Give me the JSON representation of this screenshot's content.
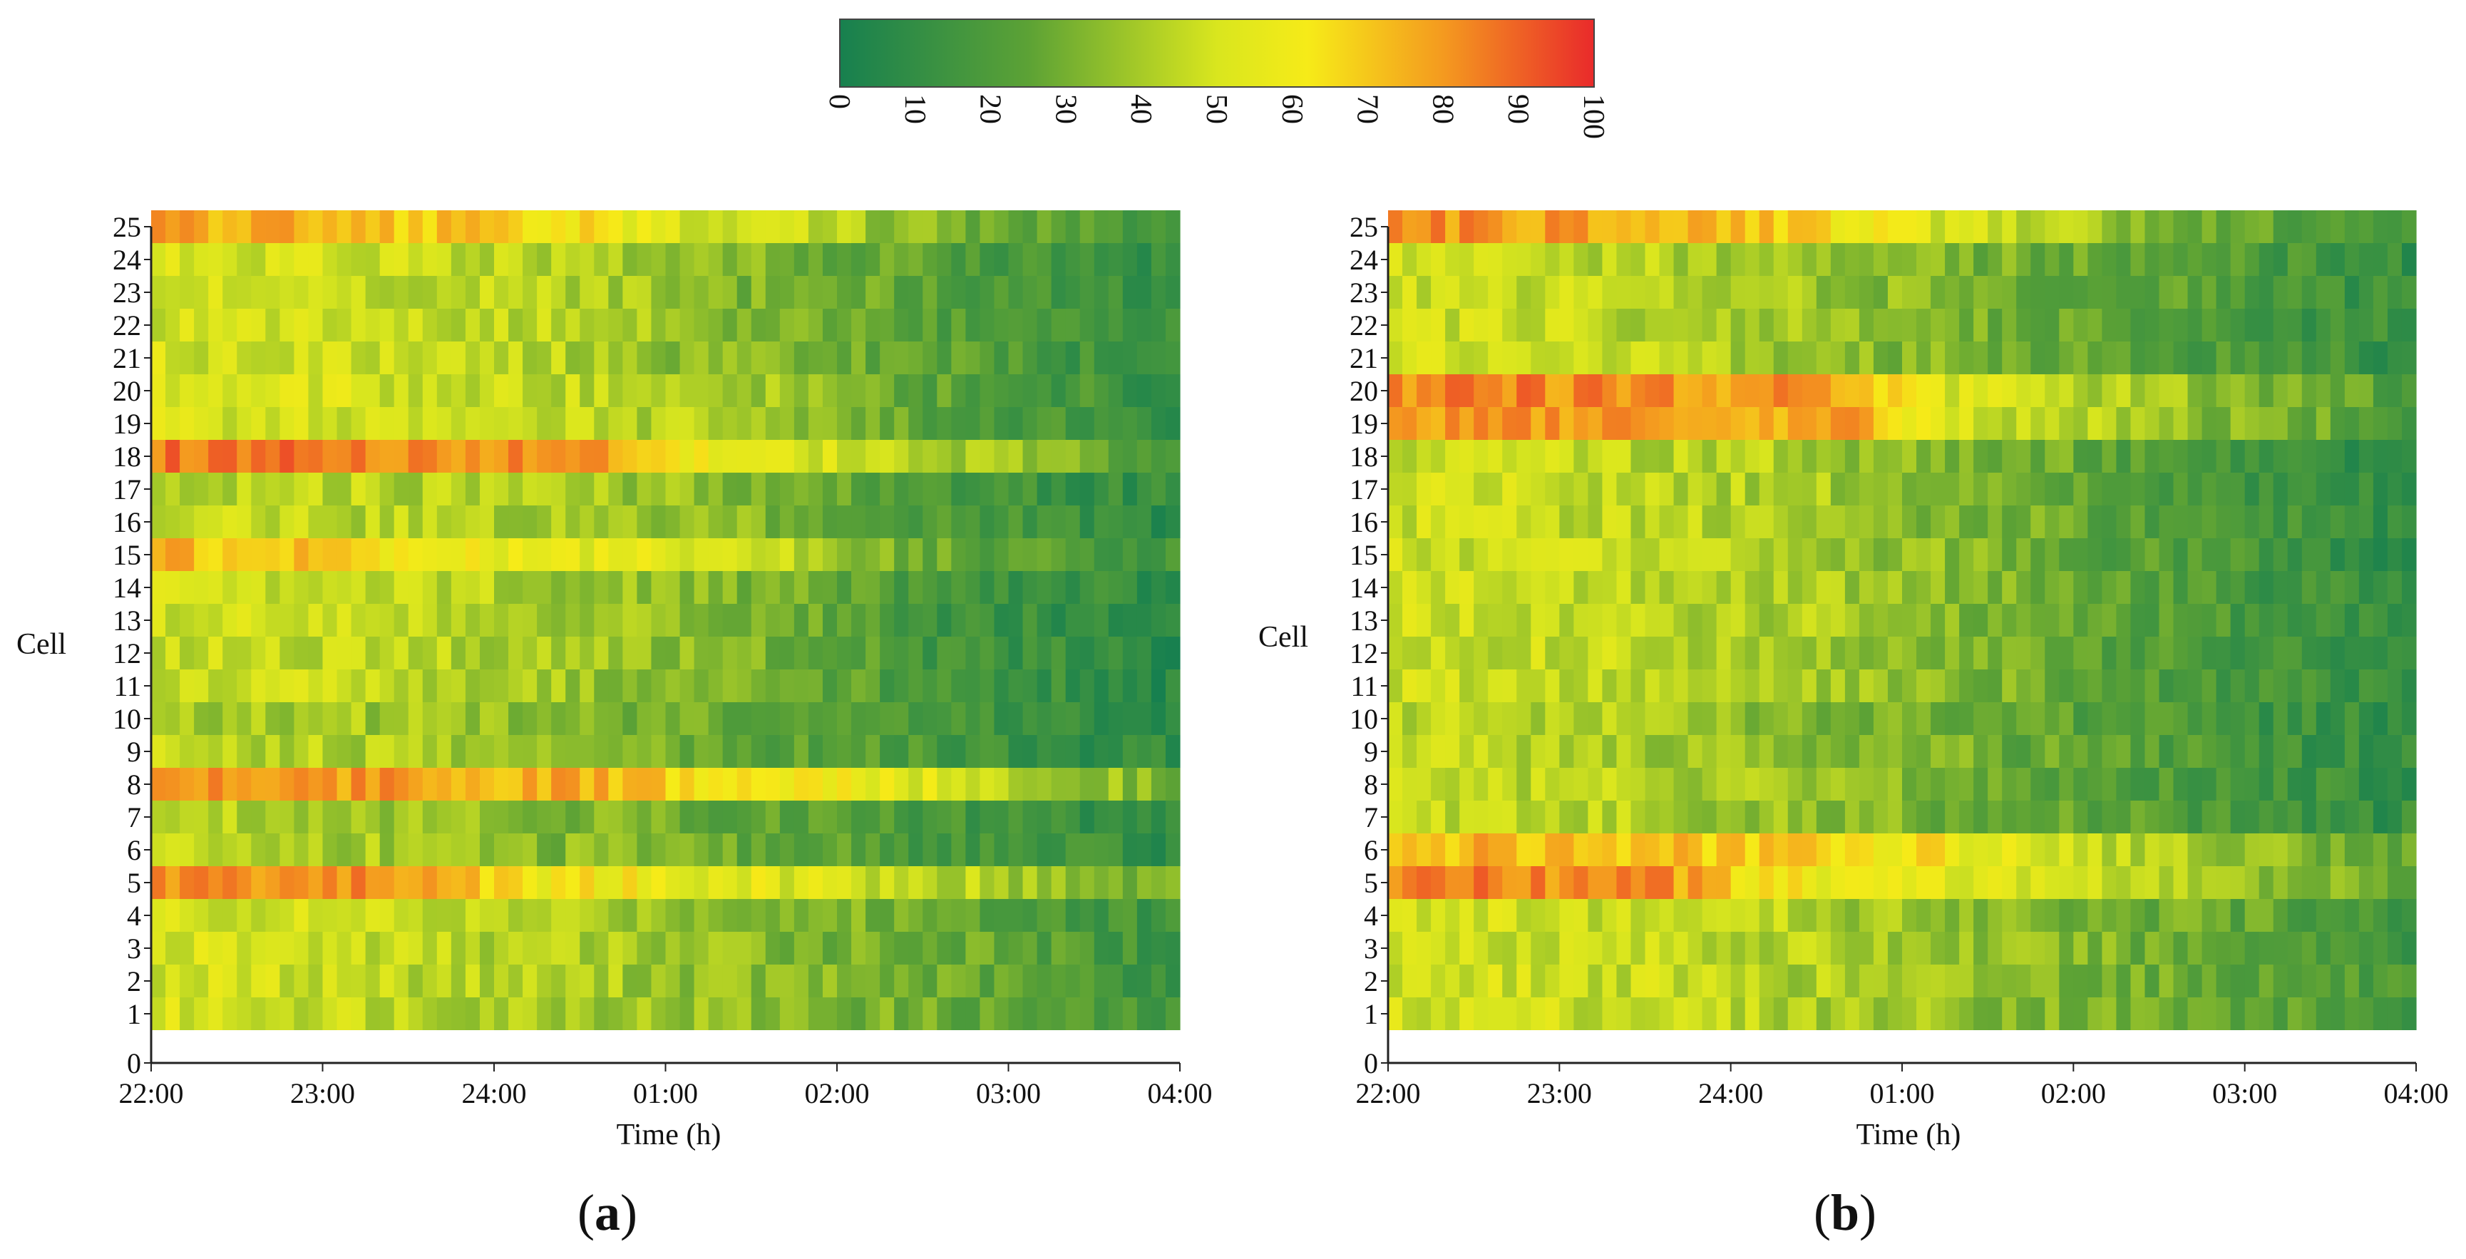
{
  "figure": {
    "colorbar": {
      "ticks": [
        "0",
        "10",
        "20",
        "30",
        "40",
        "50",
        "60",
        "70",
        "80",
        "90",
        "100"
      ],
      "colors": {
        "low": "#17804f",
        "mid_low": "#5ca235",
        "mid": "#d9e61e",
        "mid_high": "#f6eb18",
        "high_orange": "#f49a1f",
        "max": "#e92a2b"
      }
    }
  },
  "chart_data": [
    {
      "type": "heatmap",
      "panel_label": "a",
      "xlabel": "Time (h)",
      "ylabel": "Cell",
      "x_ticks": [
        "22:00",
        "23:00",
        "24:00",
        "01:00",
        "02:00",
        "03:00",
        "04:00"
      ],
      "y_ticks": [
        "0",
        "1",
        "2",
        "3",
        "4",
        "5",
        "6",
        "7",
        "8",
        "9",
        "10",
        "11",
        "12",
        "13",
        "14",
        "15",
        "16",
        "17",
        "18",
        "19",
        "20",
        "21",
        "22",
        "23",
        "24",
        "25"
      ],
      "x_range_hours": [
        0,
        6
      ],
      "y_range": [
        0,
        25
      ],
      "value_range": [
        0,
        100
      ],
      "time_columns": 72,
      "cells": [
        {
          "cell": 1,
          "levels": [
            50,
            49,
            47,
            44,
            42,
            40,
            36,
            33,
            30,
            25,
            20,
            14
          ]
        },
        {
          "cell": 2,
          "levels": [
            50,
            49,
            47,
            44,
            42,
            40,
            36,
            33,
            30,
            25,
            20,
            14
          ]
        },
        {
          "cell": 3,
          "levels": [
            50,
            49,
            47,
            44,
            42,
            40,
            36,
            33,
            30,
            25,
            20,
            14
          ]
        },
        {
          "cell": 4,
          "levels": [
            50,
            49,
            47,
            44,
            42,
            40,
            36,
            33,
            30,
            25,
            20,
            14
          ]
        },
        {
          "cell": 5,
          "levels": [
            82,
            82,
            81,
            79,
            62,
            60,
            56,
            52,
            48,
            42,
            35,
            27
          ]
        },
        {
          "cell": 6,
          "levels": [
            44,
            43,
            41,
            38,
            35,
            31,
            27,
            24,
            20,
            16,
            13,
            10
          ]
        },
        {
          "cell": 7,
          "levels": [
            44,
            43,
            41,
            38,
            35,
            31,
            27,
            24,
            20,
            16,
            13,
            10
          ]
        },
        {
          "cell": 8,
          "levels": [
            82,
            81,
            80,
            78,
            75,
            73,
            62,
            59,
            56,
            46,
            40,
            32
          ]
        },
        {
          "cell": 9,
          "levels": [
            45,
            44,
            42,
            40,
            36,
            33,
            28,
            24,
            20,
            16,
            12,
            9
          ]
        },
        {
          "cell": 10,
          "levels": [
            42,
            41,
            39,
            37,
            34,
            31,
            26,
            23,
            19,
            15,
            12,
            9
          ]
        },
        {
          "cell": 11,
          "levels": [
            48,
            47,
            46,
            44,
            42,
            36,
            32,
            29,
            18,
            14,
            11,
            8
          ]
        },
        {
          "cell": 12,
          "levels": [
            48,
            47,
            46,
            44,
            42,
            36,
            32,
            29,
            18,
            14,
            11,
            8
          ]
        },
        {
          "cell": 13,
          "levels": [
            48,
            47,
            46,
            44,
            42,
            36,
            32,
            29,
            18,
            14,
            11,
            8
          ]
        },
        {
          "cell": 14,
          "levels": [
            48,
            47,
            46,
            44,
            42,
            36,
            32,
            29,
            18,
            14,
            11,
            8
          ]
        },
        {
          "cell": 15,
          "levels": [
            72,
            70,
            68,
            60,
            56,
            53,
            50,
            46,
            30,
            25,
            20,
            14
          ]
        },
        {
          "cell": 16,
          "levels": [
            46,
            45,
            44,
            42,
            40,
            37,
            34,
            31,
            22,
            18,
            14,
            10
          ]
        },
        {
          "cell": 17,
          "levels": [
            46,
            45,
            44,
            42,
            40,
            37,
            34,
            31,
            22,
            18,
            14,
            10
          ]
        },
        {
          "cell": 18,
          "levels": [
            88,
            86,
            85,
            83,
            82,
            80,
            56,
            52,
            46,
            38,
            30,
            24
          ]
        },
        {
          "cell": 19,
          "levels": [
            52,
            51,
            50,
            48,
            46,
            44,
            40,
            36,
            26,
            21,
            17,
            13
          ]
        },
        {
          "cell": 20,
          "levels": [
            52,
            51,
            50,
            48,
            46,
            44,
            40,
            36,
            26,
            21,
            17,
            13
          ]
        },
        {
          "cell": 21,
          "levels": [
            50,
            49,
            48,
            46,
            44,
            40,
            33,
            30,
            25,
            20,
            16,
            12
          ]
        },
        {
          "cell": 22,
          "levels": [
            50,
            49,
            48,
            46,
            44,
            40,
            33,
            30,
            25,
            20,
            16,
            12
          ]
        },
        {
          "cell": 23,
          "levels": [
            50,
            49,
            48,
            46,
            44,
            40,
            33,
            30,
            25,
            20,
            16,
            12
          ]
        },
        {
          "cell": 24,
          "levels": [
            50,
            49,
            48,
            46,
            44,
            40,
            33,
            30,
            25,
            20,
            16,
            12
          ]
        },
        {
          "cell": 25,
          "levels": [
            76,
            75,
            73,
            70,
            66,
            60,
            50,
            45,
            38,
            30,
            24,
            18
          ]
        }
      ]
    },
    {
      "type": "heatmap",
      "panel_label": "b",
      "xlabel": "Time (h)",
      "ylabel": "Cell",
      "x_ticks": [
        "22:00",
        "23:00",
        "24:00",
        "01:00",
        "02:00",
        "03:00",
        "04:00"
      ],
      "y_ticks": [
        "0",
        "1",
        "2",
        "3",
        "4",
        "5",
        "6",
        "7",
        "8",
        "9",
        "10",
        "11",
        "12",
        "13",
        "14",
        "15",
        "16",
        "17",
        "18",
        "19",
        "20",
        "21",
        "22",
        "23",
        "24",
        "25"
      ],
      "x_range_hours": [
        0,
        6
      ],
      "y_range": [
        0,
        25
      ],
      "value_range": [
        0,
        100
      ],
      "time_columns": 72,
      "cells": [
        {
          "cell": 1,
          "levels": [
            50,
            49,
            48,
            46,
            43,
            40,
            37,
            34,
            30,
            26,
            22,
            17
          ]
        },
        {
          "cell": 2,
          "levels": [
            50,
            49,
            48,
            46,
            43,
            40,
            37,
            34,
            30,
            26,
            22,
            17
          ]
        },
        {
          "cell": 3,
          "levels": [
            50,
            49,
            48,
            46,
            43,
            40,
            37,
            34,
            30,
            26,
            22,
            17
          ]
        },
        {
          "cell": 4,
          "levels": [
            50,
            49,
            48,
            46,
            43,
            40,
            37,
            34,
            30,
            26,
            22,
            17
          ]
        },
        {
          "cell": 5,
          "levels": [
            84,
            83,
            82,
            80,
            60,
            58,
            54,
            50,
            44,
            38,
            32,
            26
          ]
        },
        {
          "cell": 6,
          "levels": [
            74,
            73,
            72,
            70,
            68,
            66,
            60,
            52,
            44,
            38,
            32,
            26
          ]
        },
        {
          "cell": 7,
          "levels": [
            46,
            45,
            43,
            40,
            37,
            34,
            30,
            26,
            22,
            18,
            14,
            11
          ]
        },
        {
          "cell": 8,
          "levels": [
            46,
            45,
            43,
            40,
            37,
            34,
            30,
            26,
            22,
            18,
            14,
            11
          ]
        },
        {
          "cell": 9,
          "levels": [
            46,
            45,
            43,
            40,
            37,
            34,
            30,
            26,
            22,
            18,
            14,
            11
          ]
        },
        {
          "cell": 10,
          "levels": [
            44,
            43,
            41,
            38,
            35,
            32,
            28,
            24,
            20,
            17,
            13,
            10
          ]
        },
        {
          "cell": 11,
          "levels": [
            48,
            47,
            46,
            44,
            42,
            38,
            34,
            30,
            22,
            18,
            14,
            10
          ]
        },
        {
          "cell": 12,
          "levels": [
            48,
            47,
            46,
            44,
            42,
            38,
            34,
            30,
            22,
            18,
            14,
            10
          ]
        },
        {
          "cell": 13,
          "levels": [
            48,
            47,
            46,
            44,
            42,
            38,
            34,
            30,
            22,
            18,
            14,
            10
          ]
        },
        {
          "cell": 14,
          "levels": [
            48,
            47,
            46,
            44,
            42,
            38,
            34,
            30,
            22,
            18,
            14,
            10
          ]
        },
        {
          "cell": 15,
          "levels": [
            48,
            47,
            46,
            44,
            42,
            38,
            34,
            30,
            22,
            18,
            14,
            10
          ]
        },
        {
          "cell": 16,
          "levels": [
            48,
            47,
            46,
            44,
            42,
            38,
            34,
            30,
            22,
            18,
            14,
            10
          ]
        },
        {
          "cell": 17,
          "levels": [
            48,
            47,
            46,
            44,
            42,
            38,
            34,
            30,
            22,
            18,
            14,
            10
          ]
        },
        {
          "cell": 18,
          "levels": [
            48,
            47,
            46,
            44,
            42,
            38,
            34,
            30,
            22,
            18,
            14,
            10
          ]
        },
        {
          "cell": 19,
          "levels": [
            82,
            81,
            80,
            79,
            78,
            76,
            50,
            46,
            40,
            34,
            28,
            22
          ]
        },
        {
          "cell": 20,
          "levels": [
            84,
            83,
            82,
            81,
            80,
            78,
            50,
            46,
            40,
            34,
            28,
            22
          ]
        },
        {
          "cell": 21,
          "levels": [
            48,
            47,
            45,
            42,
            39,
            36,
            32,
            28,
            24,
            20,
            16,
            12
          ]
        },
        {
          "cell": 22,
          "levels": [
            48,
            47,
            45,
            42,
            39,
            36,
            32,
            28,
            24,
            20,
            16,
            12
          ]
        },
        {
          "cell": 23,
          "levels": [
            48,
            47,
            45,
            42,
            39,
            36,
            32,
            28,
            24,
            20,
            16,
            12
          ]
        },
        {
          "cell": 24,
          "levels": [
            48,
            47,
            45,
            42,
            39,
            36,
            32,
            28,
            24,
            20,
            16,
            12
          ]
        },
        {
          "cell": 25,
          "levels": [
            80,
            79,
            78,
            76,
            70,
            62,
            50,
            44,
            36,
            28,
            22,
            16
          ]
        }
      ]
    }
  ]
}
